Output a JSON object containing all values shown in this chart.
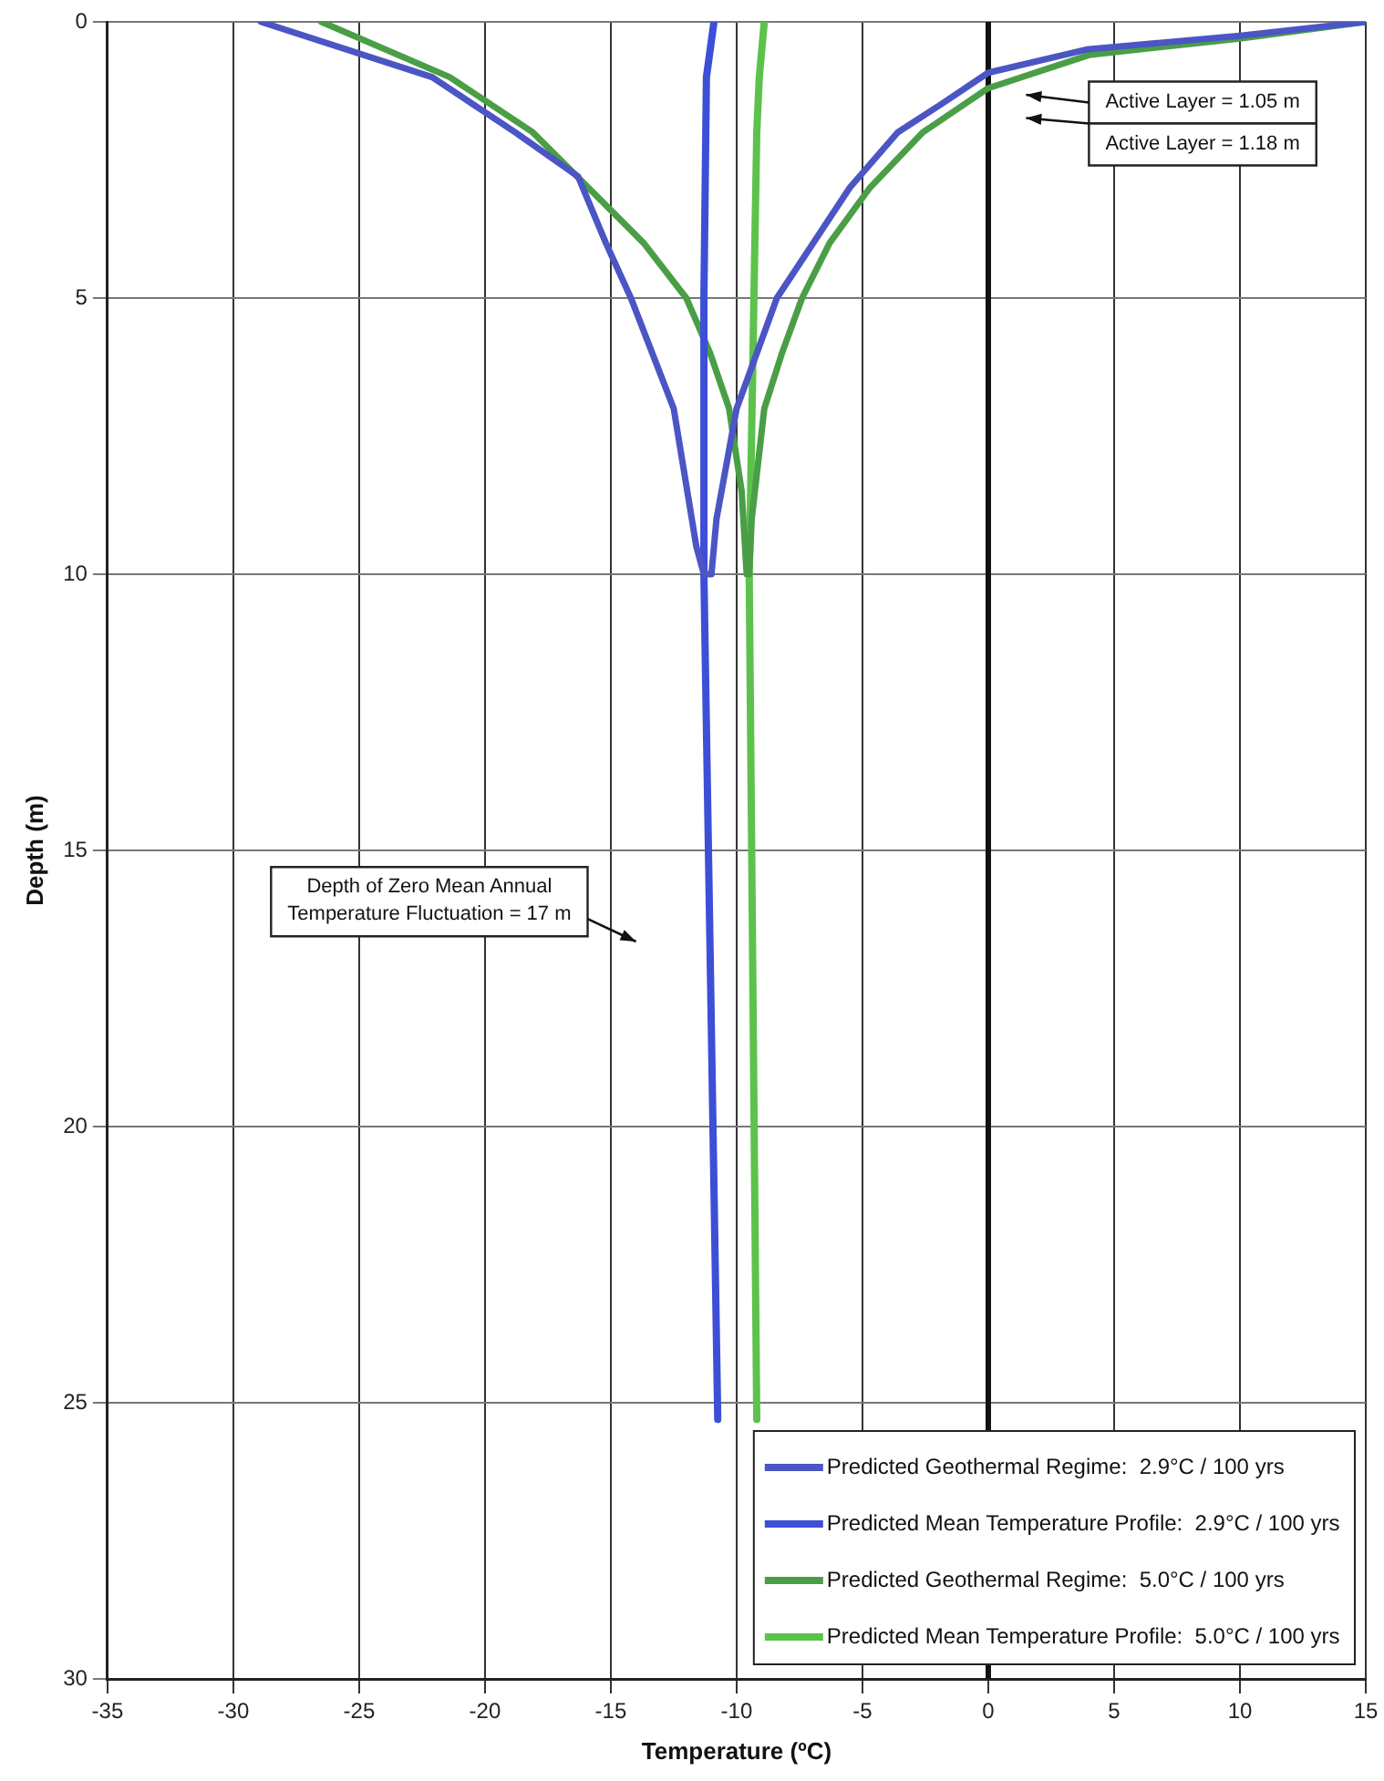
{
  "chart_data": {
    "type": "line",
    "xlabel": "Temperature (ºC)",
    "ylabel": "Depth (m)",
    "xlim": [
      -35,
      15
    ],
    "xticks": [
      -35,
      -30,
      -25,
      -20,
      -15,
      -10,
      -5,
      0,
      5,
      10,
      15
    ],
    "ylim": [
      30,
      0
    ],
    "yticks": [
      0,
      5,
      10,
      15,
      20,
      25,
      30
    ],
    "grid": true,
    "legend": "bottom right",
    "marker": "none",
    "line_style": "solid",
    "series": [
      {
        "name": "Predicted Geothermal Regime:  2.9°C / 100 yrs",
        "color": "#4b55c4",
        "x": [
          -28.9,
          -22.1,
          -18.8,
          -16.3,
          -15.2,
          -14.2,
          -12.5,
          -11.6,
          -11.3,
          -11.0,
          -10.8,
          -10.0,
          -8.4,
          -5.5,
          -3.6,
          -1.9,
          0,
          3.9,
          10,
          15
        ],
        "values": [
          0,
          1,
          2,
          2.8,
          4,
          5,
          7,
          9.5,
          10,
          10,
          9,
          7,
          5,
          3,
          2,
          1.5,
          0.92,
          0.5,
          0.25,
          0
        ]
      },
      {
        "name": "Predicted Mean Temperature Profile:  2.9°C / 100 yrs",
        "color": "#3d4fd6",
        "x": [
          -10.9,
          -11.2,
          -11.3,
          -11.3,
          -10.75
        ],
        "values": [
          0,
          1,
          5,
          10,
          25.3
        ]
      },
      {
        "name": "Predicted Geothermal Regime:  5.0°C / 100 yrs",
        "color": "#4a9e46",
        "x": [
          -26.5,
          -21.4,
          -18.1,
          -15.9,
          -13.7,
          -12.0,
          -11.05,
          -10.3,
          -9.8,
          -9.6,
          -9.5,
          -9.4,
          -8.9,
          -8.2,
          -7.4,
          -6.3,
          -4.7,
          -2.6,
          0,
          4,
          10,
          15
        ],
        "values": [
          0,
          1,
          2,
          3,
          4,
          5,
          6,
          7,
          8.5,
          10,
          10,
          9,
          7,
          6,
          5,
          4,
          3,
          2,
          1.2,
          0.6,
          0.3,
          0
        ]
      },
      {
        "name": "Predicted Mean Temperature Profile:  5.0°C / 100 yrs",
        "color": "#5cc24c",
        "x": [
          -8.9,
          -9.1,
          -9.2,
          -9.5,
          -9.2
        ],
        "values": [
          0,
          1,
          2,
          10,
          25.3
        ]
      }
    ],
    "ref_lines": [
      {
        "axis": "x",
        "value": 0,
        "color": "#111111"
      }
    ],
    "annotations": [
      "Active Layer = 1.05 m",
      "Active Layer = 1.18 m",
      "Depth of Zero Mean Annual\nTemperature Fluctuation = 17 m"
    ]
  }
}
